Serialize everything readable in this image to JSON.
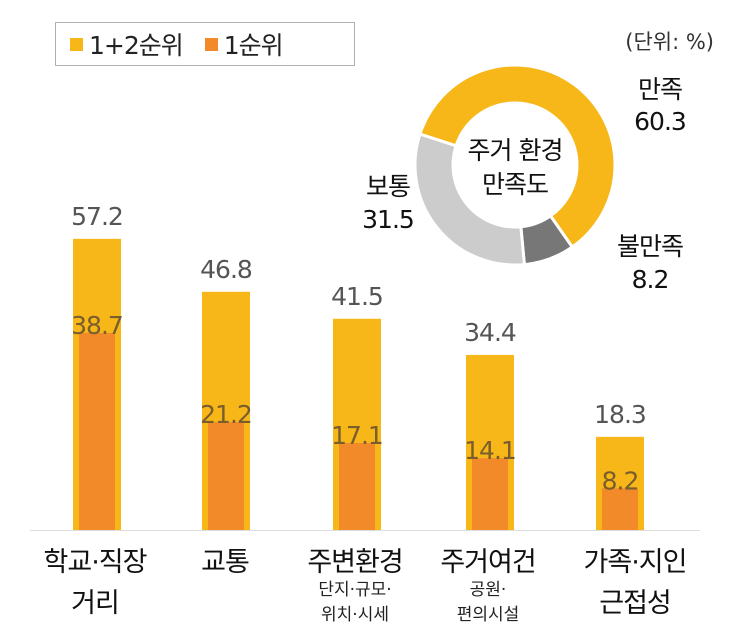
{
  "legend": {
    "total_label": "1+2순위",
    "first_label": "1순위"
  },
  "unit_label": "(단위: %)",
  "colors": {
    "total": "#F7B719",
    "first": "#F28A2A",
    "satisfied": "#F7B719",
    "neutral": "#CCCCCC",
    "dissatisfied": "#777777"
  },
  "chart_data": [
    {
      "type": "bar",
      "title": "",
      "unit": "%",
      "categories": [
        "학교·직장 거리",
        "교통",
        "주변환경",
        "주거여건",
        "가족·지인 근접성"
      ],
      "category_labels": [
        {
          "main": "학교·직장",
          "sub": "거리",
          "sub_style": "large"
        },
        {
          "main": "교통",
          "sub": "",
          "sub_style": "none"
        },
        {
          "main": "주변환경",
          "sub": "단지·규모·",
          "sub2": "위치·시세",
          "sub_style": "small"
        },
        {
          "main": "주거여건",
          "sub": "공원·",
          "sub2": "편의시설",
          "sub_style": "small"
        },
        {
          "main": "가족·지인",
          "sub": "근접성",
          "sub_style": "large"
        }
      ],
      "series": [
        {
          "name": "1+2순위",
          "values": [
            57.2,
            46.8,
            41.5,
            34.4,
            18.3
          ]
        },
        {
          "name": "1순위",
          "values": [
            38.7,
            21.2,
            17.1,
            14.1,
            8.2
          ]
        }
      ],
      "ylim": [
        0,
        60
      ]
    },
    {
      "type": "pie",
      "title": "주거 환경 만족도",
      "title_lines": [
        "주거 환경",
        "만족도"
      ],
      "slices": [
        {
          "label": "만족",
          "value": 60.3
        },
        {
          "label": "불만족",
          "value": 8.2
        },
        {
          "label": "보통",
          "value": 31.5
        }
      ]
    }
  ]
}
